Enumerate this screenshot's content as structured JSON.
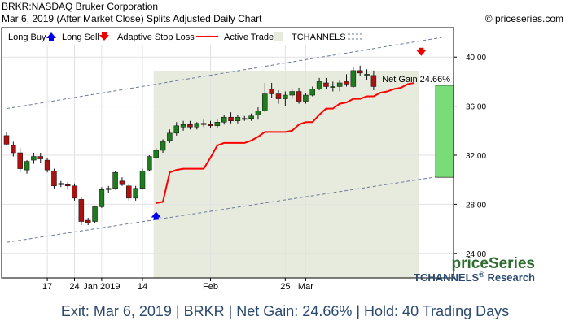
{
  "header": {
    "line1": "BRKR:NASDAQ Bruker Corporation",
    "line2": "Mar 6, 2019 (After Market Close)  Splits Adjusted Daily Chart",
    "copyright": "© priceseries.com"
  },
  "footer": "Exit: Mar 6, 2019 | BRKR | Net Gain: 24.66% | Hold: 40 Trading Days",
  "chart_data": {
    "type": "candlestick",
    "legend": {
      "placement": "top-left",
      "items": [
        "Long Buy",
        "Long Sell",
        "Adaptive Stop Loss",
        "Active Trade",
        "TCHANNELS"
      ]
    },
    "yticks": [
      "40.00",
      "36.00",
      "32.00",
      "28.00",
      "24.00"
    ],
    "ylim": [
      22.0,
      42.4
    ],
    "xticks": [
      {
        "label": "17",
        "index": 6
      },
      {
        "label": "24",
        "index": 10
      },
      {
        "label": "Jan 2019",
        "index": 14
      },
      {
        "label": "14",
        "index": 20
      },
      {
        "label": "Feb",
        "index": 30
      },
      {
        "label": "25",
        "index": 41
      },
      {
        "label": "Mar",
        "index": 44
      }
    ],
    "colors": {
      "up": "#1e7b1e",
      "down": "#aa1111",
      "stop": "#ff0000",
      "channel": "#6b7a99",
      "active": "#e7ebdd",
      "gain": "#78dd78",
      "buy": "#0000ee",
      "sell": "#ee0000",
      "brand_green": "#2e6b2e",
      "brand_blue": "#2b4a6f"
    },
    "candles": [
      {
        "o": 33.6,
        "h": 33.9,
        "l": 32.8,
        "c": 32.9
      },
      {
        "o": 32.8,
        "h": 33.1,
        "l": 31.9,
        "c": 32.2
      },
      {
        "o": 32.2,
        "h": 32.6,
        "l": 30.6,
        "c": 30.9
      },
      {
        "o": 30.8,
        "h": 31.6,
        "l": 30.5,
        "c": 31.5
      },
      {
        "o": 31.6,
        "h": 32.2,
        "l": 31.3,
        "c": 31.9
      },
      {
        "o": 31.9,
        "h": 32.2,
        "l": 31.4,
        "c": 31.7
      },
      {
        "o": 31.6,
        "h": 31.8,
        "l": 30.6,
        "c": 30.8
      },
      {
        "o": 30.7,
        "h": 30.9,
        "l": 29.3,
        "c": 29.5
      },
      {
        "o": 29.6,
        "h": 29.9,
        "l": 29.4,
        "c": 29.7
      },
      {
        "o": 29.6,
        "h": 29.8,
        "l": 29.2,
        "c": 29.5
      },
      {
        "o": 29.5,
        "h": 29.7,
        "l": 28.3,
        "c": 28.5
      },
      {
        "o": 28.4,
        "h": 28.6,
        "l": 26.3,
        "c": 26.6
      },
      {
        "o": 26.7,
        "h": 26.9,
        "l": 26.3,
        "c": 26.5
      },
      {
        "o": 26.6,
        "h": 27.9,
        "l": 26.5,
        "c": 27.8
      },
      {
        "o": 27.8,
        "h": 29.4,
        "l": 27.7,
        "c": 29.2
      },
      {
        "o": 29.2,
        "h": 29.5,
        "l": 28.9,
        "c": 29.3
      },
      {
        "o": 29.3,
        "h": 30.7,
        "l": 29.2,
        "c": 30.6
      },
      {
        "o": 29.9,
        "h": 30.2,
        "l": 29.5,
        "c": 29.6
      },
      {
        "o": 29.5,
        "h": 29.7,
        "l": 28.3,
        "c": 28.5
      },
      {
        "o": 28.5,
        "h": 29.5,
        "l": 28.3,
        "c": 29.3
      },
      {
        "o": 29.3,
        "h": 30.9,
        "l": 29.2,
        "c": 30.7
      },
      {
        "o": 30.8,
        "h": 32.0,
        "l": 30.7,
        "c": 31.9
      },
      {
        "o": 31.8,
        "h": 32.6,
        "l": 31.7,
        "c": 32.4
      },
      {
        "o": 32.4,
        "h": 33.3,
        "l": 32.2,
        "c": 33.1
      },
      {
        "o": 33.2,
        "h": 34.1,
        "l": 33.0,
        "c": 33.8
      },
      {
        "o": 33.8,
        "h": 34.7,
        "l": 33.6,
        "c": 34.4
      },
      {
        "o": 34.3,
        "h": 34.8,
        "l": 34.0,
        "c": 34.5
      },
      {
        "o": 34.5,
        "h": 34.8,
        "l": 34.1,
        "c": 34.3
      },
      {
        "o": 34.3,
        "h": 34.7,
        "l": 34.1,
        "c": 34.6
      },
      {
        "o": 34.6,
        "h": 34.9,
        "l": 34.3,
        "c": 34.5
      },
      {
        "o": 34.5,
        "h": 34.8,
        "l": 34.2,
        "c": 34.4
      },
      {
        "o": 34.4,
        "h": 34.9,
        "l": 34.2,
        "c": 34.7
      },
      {
        "o": 34.7,
        "h": 35.3,
        "l": 34.5,
        "c": 35.1
      },
      {
        "o": 35.1,
        "h": 35.5,
        "l": 34.6,
        "c": 34.8
      },
      {
        "o": 34.8,
        "h": 35.3,
        "l": 34.6,
        "c": 35.1
      },
      {
        "o": 35.0,
        "h": 35.2,
        "l": 34.8,
        "c": 35.0
      },
      {
        "o": 35.0,
        "h": 35.4,
        "l": 34.8,
        "c": 35.2
      },
      {
        "o": 35.3,
        "h": 35.9,
        "l": 34.9,
        "c": 35.6
      },
      {
        "o": 35.6,
        "h": 37.9,
        "l": 35.5,
        "c": 37.0
      },
      {
        "o": 37.4,
        "h": 37.9,
        "l": 36.7,
        "c": 37.0
      },
      {
        "o": 37.0,
        "h": 37.3,
        "l": 36.2,
        "c": 36.6
      },
      {
        "o": 36.6,
        "h": 37.2,
        "l": 36.0,
        "c": 36.9
      },
      {
        "o": 36.9,
        "h": 37.4,
        "l": 36.6,
        "c": 37.2
      },
      {
        "o": 37.2,
        "h": 37.5,
        "l": 36.2,
        "c": 36.4
      },
      {
        "o": 36.4,
        "h": 37.1,
        "l": 36.2,
        "c": 36.9
      },
      {
        "o": 36.9,
        "h": 37.6,
        "l": 36.8,
        "c": 37.4
      },
      {
        "o": 37.4,
        "h": 38.3,
        "l": 37.3,
        "c": 38.0
      },
      {
        "o": 37.9,
        "h": 38.3,
        "l": 37.4,
        "c": 37.6
      },
      {
        "o": 37.6,
        "h": 38.0,
        "l": 37.2,
        "c": 37.6
      },
      {
        "o": 37.6,
        "h": 38.1,
        "l": 37.2,
        "c": 37.9
      },
      {
        "o": 38.0,
        "h": 38.6,
        "l": 37.6,
        "c": 37.8
      },
      {
        "o": 37.6,
        "h": 39.2,
        "l": 37.5,
        "c": 38.9
      },
      {
        "o": 38.9,
        "h": 39.3,
        "l": 38.5,
        "c": 38.7
      },
      {
        "o": 38.6,
        "h": 39.0,
        "l": 38.1,
        "c": 38.6
      },
      {
        "o": 38.5,
        "h": 38.9,
        "l": 37.3,
        "c": 37.6
      }
    ],
    "stop_loss": [
      {
        "i": 22,
        "v": 28.1
      },
      {
        "i": 23,
        "v": 28.2
      },
      {
        "i": 24,
        "v": 30.6
      },
      {
        "i": 25,
        "v": 30.8
      },
      {
        "i": 26,
        "v": 30.9
      },
      {
        "i": 27,
        "v": 30.9
      },
      {
        "i": 28,
        "v": 30.9
      },
      {
        "i": 29,
        "v": 30.9
      },
      {
        "i": 30,
        "v": 31.8
      },
      {
        "i": 31,
        "v": 32.8
      },
      {
        "i": 32,
        "v": 33.0
      },
      {
        "i": 33,
        "v": 33.0
      },
      {
        "i": 34,
        "v": 33.0
      },
      {
        "i": 35,
        "v": 33.0
      },
      {
        "i": 36,
        "v": 33.2
      },
      {
        "i": 37,
        "v": 33.5
      },
      {
        "i": 38,
        "v": 33.9
      },
      {
        "i": 39,
        "v": 33.9
      },
      {
        "i": 40,
        "v": 33.9
      },
      {
        "i": 41,
        "v": 33.9
      },
      {
        "i": 42,
        "v": 34.0
      },
      {
        "i": 43,
        "v": 34.5
      },
      {
        "i": 44,
        "v": 34.7
      },
      {
        "i": 45,
        "v": 34.7
      },
      {
        "i": 46,
        "v": 35.3
      },
      {
        "i": 47,
        "v": 35.8
      },
      {
        "i": 48,
        "v": 35.8
      },
      {
        "i": 49,
        "v": 36.2
      },
      {
        "i": 50,
        "v": 36.3
      },
      {
        "i": 51,
        "v": 36.6
      },
      {
        "i": 52,
        "v": 36.6
      },
      {
        "i": 53,
        "v": 36.8
      },
      {
        "i": 54,
        "v": 36.8
      },
      {
        "i": 55,
        "v": 37.1
      },
      {
        "i": 56,
        "v": 37.2
      },
      {
        "i": 57,
        "v": 37.4
      },
      {
        "i": 58,
        "v": 37.5
      },
      {
        "i": 59,
        "v": 37.8
      },
      {
        "i": 60,
        "v": 37.9
      }
    ],
    "channel_upper": [
      {
        "i": 0,
        "v": 35.8
      },
      {
        "i": 64,
        "v": 41.6
      }
    ],
    "channel_lower": [
      {
        "i": 0,
        "v": 24.9
      },
      {
        "i": 64,
        "v": 30.3
      }
    ],
    "active_trade": {
      "start_index": 22,
      "end_index": 60
    },
    "buy_marker": {
      "index": 22,
      "value": 27.2
    },
    "sell_marker": {
      "index": 61,
      "value": 40.3
    },
    "net_gain": {
      "label": "Net Gain 24.66%",
      "entry": 30.2,
      "exit": 37.7
    },
    "brand": {
      "name": "priceSeries",
      "tagline": "TCHANNELS",
      "reg": "®",
      "suffix": " Research"
    }
  }
}
